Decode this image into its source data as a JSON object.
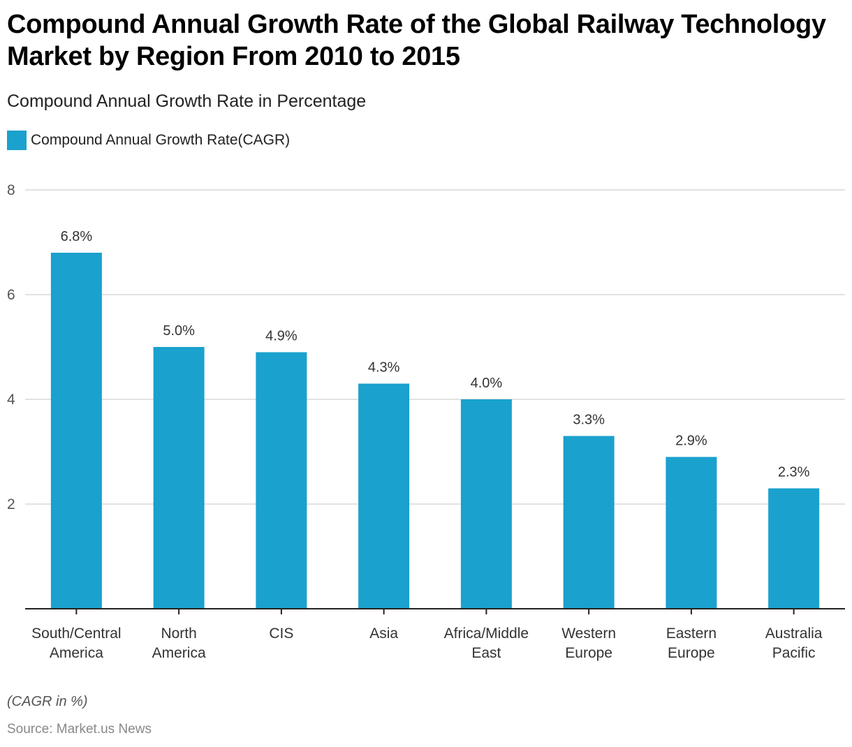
{
  "header": {
    "title": "Compound Annual Growth Rate of the Global Railway Technology Market by Region From 2010 to 2015",
    "subtitle": "Compound Annual Growth Rate in Percentage"
  },
  "legend": {
    "label": "Compound Annual Growth Rate(CAGR)",
    "color": "#1aa1cd"
  },
  "footer": {
    "note": "(CAGR in %)",
    "source": "Source: Market.us News"
  },
  "chart_data": {
    "type": "bar",
    "title": "Compound Annual Growth Rate of the Global Railway Technology Market by Region From 2010 to 2015",
    "subtitle": "Compound Annual Growth Rate in Percentage",
    "xlabel": "",
    "ylabel": "",
    "categories": [
      [
        "South/Central",
        "America"
      ],
      [
        "North",
        "America"
      ],
      [
        "CIS"
      ],
      [
        "Asia"
      ],
      [
        "Africa/Middle",
        "East"
      ],
      [
        "Western",
        "Europe"
      ],
      [
        "Eastern",
        "Europe"
      ],
      [
        "Australia",
        "Pacific"
      ]
    ],
    "series": [
      {
        "name": "Compound Annual Growth Rate(CAGR)",
        "color": "#1aa1cd",
        "values": [
          6.8,
          5.0,
          4.9,
          4.3,
          4.0,
          3.3,
          2.9,
          2.3
        ],
        "labels": [
          "6.8%",
          "5.0%",
          "4.9%",
          "4.3%",
          "4.0%",
          "3.3%",
          "2.9%",
          "2.3%"
        ]
      }
    ],
    "ylim": [
      0,
      8
    ],
    "yticks": [
      2,
      4,
      6,
      8
    ],
    "grid": true,
    "legend_position": "top-left"
  }
}
